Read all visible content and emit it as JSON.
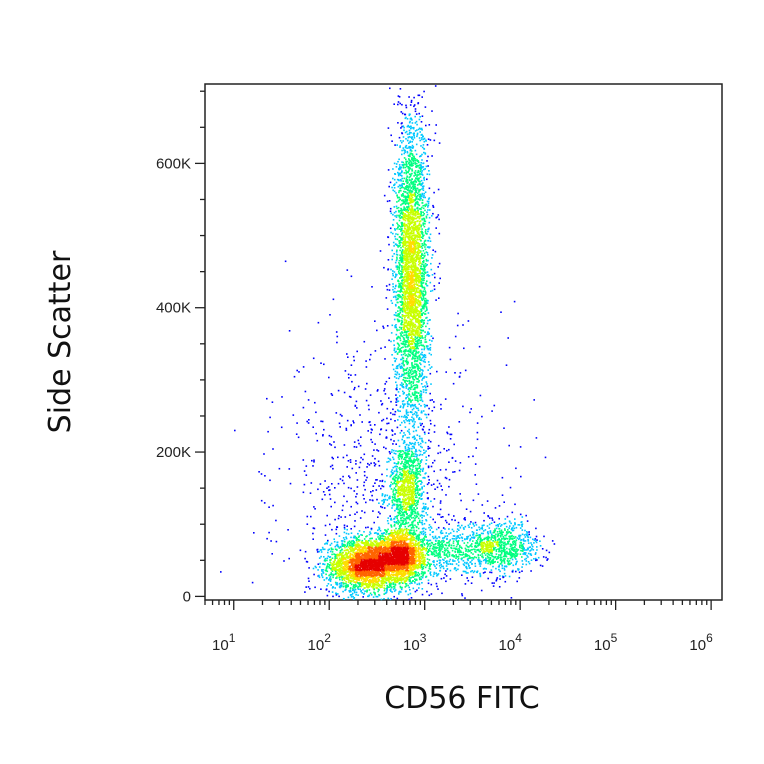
{
  "chart_data": {
    "type": "scatter",
    "subtype": "flow-cytometry density dot plot",
    "xlabel": "CD56 FITC",
    "ylabel": "Side Scatter",
    "x_scale": "log",
    "xlim": [
      5,
      1300000
    ],
    "ylim": [
      -5000,
      710000
    ],
    "x_ticks": [
      {
        "base": "10",
        "exp": "1",
        "value": 10
      },
      {
        "base": "10",
        "exp": "2",
        "value": 100
      },
      {
        "base": "10",
        "exp": "3",
        "value": 1000
      },
      {
        "base": "10",
        "exp": "4",
        "value": 10000
      },
      {
        "base": "10",
        "exp": "5",
        "value": 100000
      },
      {
        "base": "10",
        "exp": "6",
        "value": 1000000
      }
    ],
    "y_ticks": [
      {
        "label": "0",
        "value": 0
      },
      {
        "label": "200K",
        "value": 200000
      },
      {
        "label": "400K",
        "value": 400000
      },
      {
        "label": "600K",
        "value": 600000
      }
    ],
    "color_scale": [
      "#0000ff",
      "#00c8ff",
      "#00ff80",
      "#c8ff00",
      "#ffdc00",
      "#ff6400",
      "#e60000"
    ],
    "populations": [
      {
        "x_center": 240,
        "y_center": 45000,
        "log_x_spread": 0.2,
        "y_spread": 18000,
        "points": 2600
      },
      {
        "x_center": 560,
        "y_center": 55000,
        "log_x_spread": 0.12,
        "y_spread": 18000,
        "points": 1500
      },
      {
        "x_center": 650,
        "y_center": 150000,
        "log_x_spread": 0.09,
        "y_spread": 35000,
        "points": 900
      },
      {
        "x_center": 720,
        "y_center": 450000,
        "log_x_spread": 0.09,
        "y_spread": 105000,
        "points": 3600
      },
      {
        "x_center": 6000,
        "y_center": 70000,
        "log_x_spread": 0.2,
        "y_spread": 18000,
        "points": 800
      },
      {
        "x_center": 1300,
        "y_center": 65000,
        "log_x_spread": 0.35,
        "y_spread": 20000,
        "points": 700
      },
      {
        "x_center": 400,
        "y_center": 150000,
        "log_x_spread": 0.55,
        "y_spread": 110000,
        "points": 900
      }
    ]
  }
}
